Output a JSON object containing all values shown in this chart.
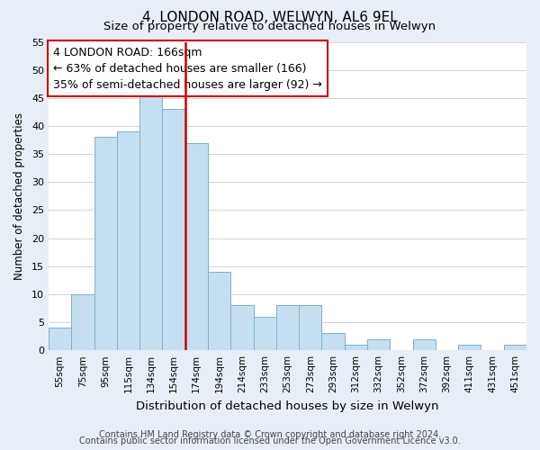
{
  "title": "4, LONDON ROAD, WELWYN, AL6 9EL",
  "subtitle": "Size of property relative to detached houses in Welwyn",
  "xlabel": "Distribution of detached houses by size in Welwyn",
  "ylabel": "Number of detached properties",
  "bar_labels": [
    "55sqm",
    "75sqm",
    "95sqm",
    "115sqm",
    "134sqm",
    "154sqm",
    "174sqm",
    "194sqm",
    "214sqm",
    "233sqm",
    "253sqm",
    "273sqm",
    "293sqm",
    "312sqm",
    "332sqm",
    "352sqm",
    "372sqm",
    "392sqm",
    "411sqm",
    "431sqm",
    "451sqm"
  ],
  "bar_values": [
    4,
    10,
    38,
    39,
    46,
    43,
    37,
    14,
    8,
    6,
    8,
    8,
    3,
    1,
    2,
    0,
    2,
    0,
    1,
    0,
    1
  ],
  "bar_color": "#c5dff0",
  "bar_edge_color": "#7bafd4",
  "vline_x": 5.5,
  "vline_color": "#cc0000",
  "ylim": [
    0,
    55
  ],
  "yticks": [
    0,
    5,
    10,
    15,
    20,
    25,
    30,
    35,
    40,
    45,
    50,
    55
  ],
  "annotation_title": "4 LONDON ROAD: 166sqm",
  "annotation_line1": "← 63% of detached houses are smaller (166)",
  "annotation_line2": "35% of semi-detached houses are larger (92) →",
  "footer_line1": "Contains HM Land Registry data © Crown copyright and database right 2024.",
  "footer_line2": "Contains public sector information licensed under the Open Government Licence v3.0.",
  "bg_color": "#e8eef8",
  "plot_bg_color": "#ffffff",
  "title_fontsize": 11,
  "subtitle_fontsize": 9.5,
  "ylabel_fontsize": 8.5,
  "xlabel_fontsize": 9.5,
  "tick_fontsize": 8,
  "xtick_fontsize": 7.5,
  "footer_fontsize": 7,
  "ann_fontsize": 9
}
